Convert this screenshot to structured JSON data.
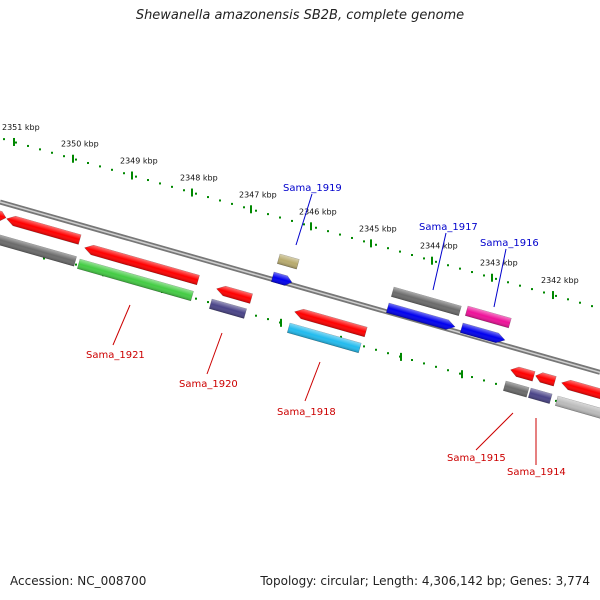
{
  "title": "Shewanella amazonensis SB2B, complete genome",
  "footer": {
    "accession": "Accession: NC_008700",
    "stats": "Topology: circular; Length: 4,306,142 bp; Genes: 3,774"
  },
  "kbp_labels": [
    "2351 kbp",
    "2350 kbp",
    "2349 kbp",
    "2348 kbp",
    "2347 kbp",
    "2346 kbp",
    "2345 kbp",
    "2344 kbp",
    "2343 kbp",
    "2342 kbp"
  ],
  "genes": [
    {
      "id": "Sama_1919",
      "strand": "forward",
      "color": "#b8ab6e",
      "label_color": "#0000cc"
    },
    {
      "id": "Sama_1917",
      "strand": "forward",
      "color": "#6b6b6b",
      "label_color": "#0000cc"
    },
    {
      "id": "Sama_1916",
      "strand": "forward",
      "color": "#ee1199",
      "label_color": "#0000cc"
    },
    {
      "id": "Sama_1921",
      "strand": "reverse",
      "color": "#44cc44",
      "label_color": "#cc0000"
    },
    {
      "id": "Sama_1920",
      "strand": "reverse",
      "color": "#4a4488",
      "label_color": "#cc0000"
    },
    {
      "id": "Sama_1918",
      "strand": "reverse",
      "color": "#22bbee",
      "label_color": "#cc0000"
    },
    {
      "id": "Sama_1915",
      "strand": "reverse",
      "color": "#6b6b6b",
      "label_color": "#cc0000"
    },
    {
      "id": "Sama_1914",
      "strand": "reverse",
      "color": "#4a4488",
      "label_color": "#cc0000"
    }
  ],
  "colors": {
    "cds": "#ff0000",
    "backbone": "#888888",
    "tick": "#008800",
    "forward_label": "#0000cc",
    "reverse_label": "#cc0000"
  }
}
